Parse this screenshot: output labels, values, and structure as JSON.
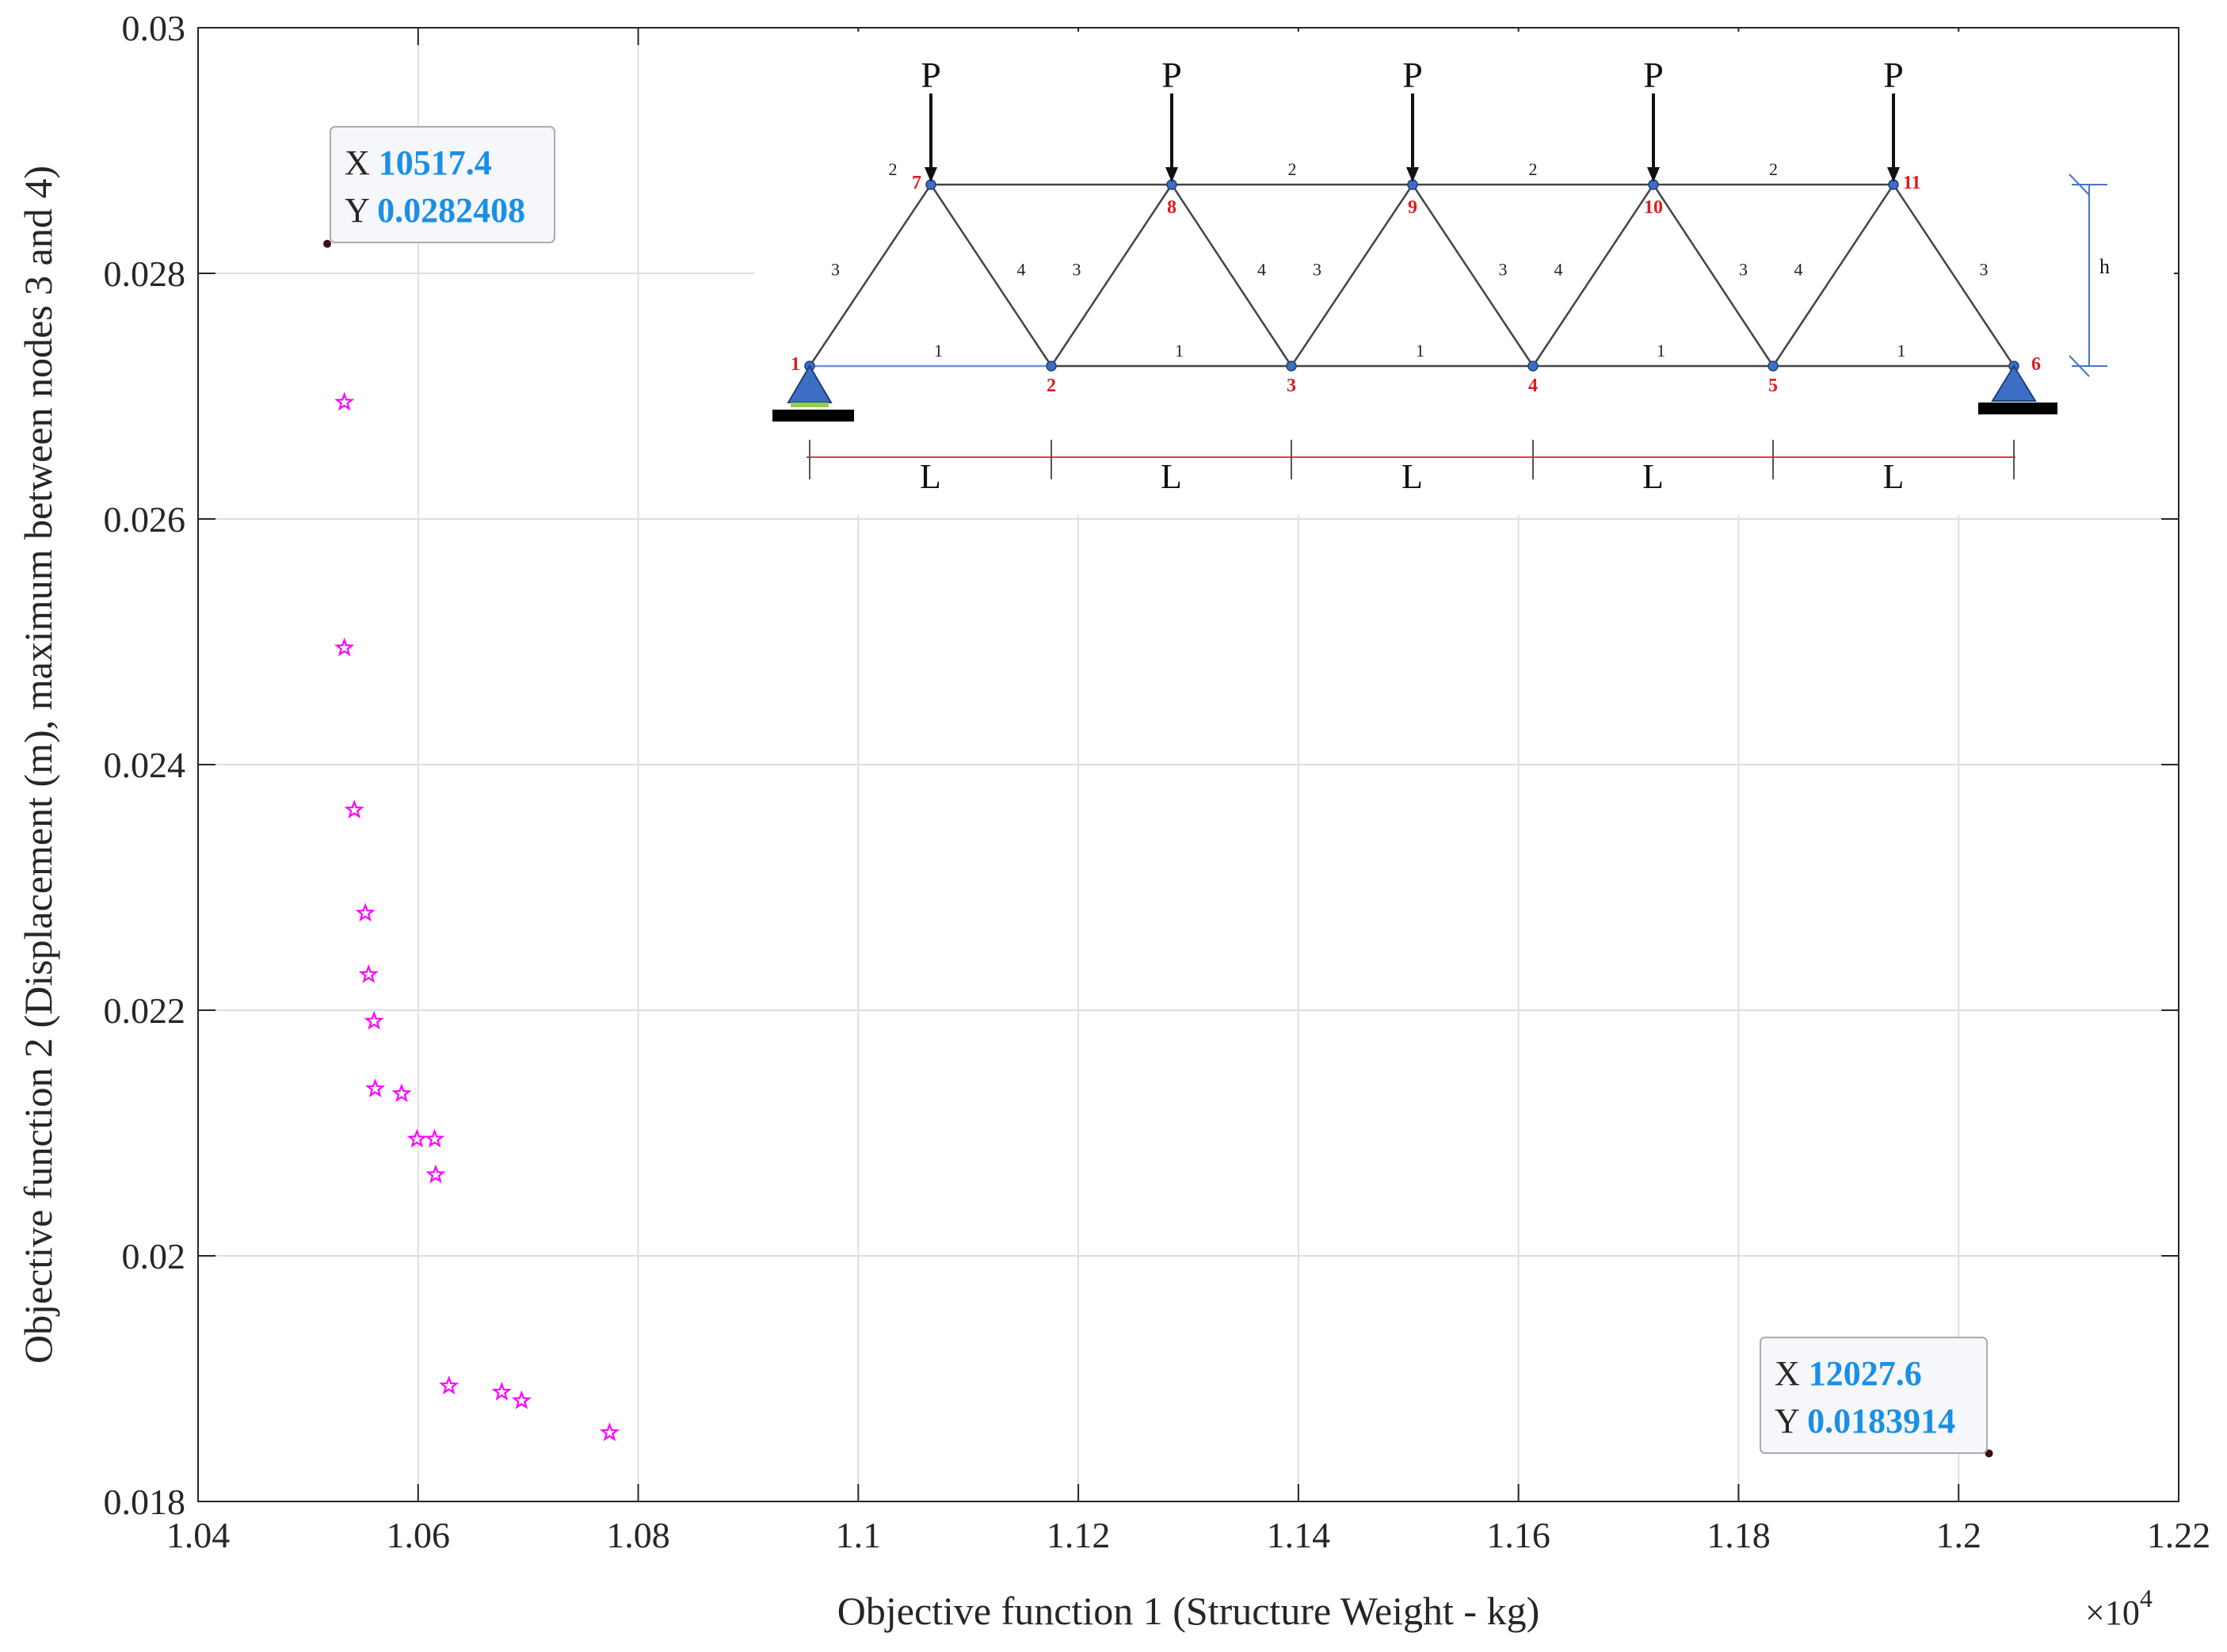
{
  "chart_data": {
    "type": "scatter",
    "xlabel": "Objective function 1 (Structure Weight - kg)",
    "ylabel": "Objective function 2 (Displacement (m), maximum between nodes 3 and 4)",
    "x_multiplier_label": "×10",
    "x_multiplier_exponent": "4",
    "xlim": [
      10400,
      12200
    ],
    "ylim": [
      0.018,
      0.03
    ],
    "grid": true,
    "x_ticks": [
      {
        "value": 10400,
        "label": "1.04"
      },
      {
        "value": 10600,
        "label": "1.06"
      },
      {
        "value": 10800,
        "label": "1.08"
      },
      {
        "value": 11000,
        "label": "1.1"
      },
      {
        "value": 11200,
        "label": "1.12"
      },
      {
        "value": 11400,
        "label": "1.14"
      },
      {
        "value": 11600,
        "label": "1.16"
      },
      {
        "value": 11800,
        "label": "1.18"
      },
      {
        "value": 12000,
        "label": "1.2"
      },
      {
        "value": 12200,
        "label": "1.22"
      }
    ],
    "y_ticks": [
      {
        "value": 0.018,
        "label": "0.018"
      },
      {
        "value": 0.02,
        "label": "0.02"
      },
      {
        "value": 0.022,
        "label": "0.022"
      },
      {
        "value": 0.024,
        "label": "0.024"
      },
      {
        "value": 0.026,
        "label": "0.026"
      },
      {
        "value": 0.028,
        "label": "0.028"
      },
      {
        "value": 0.03,
        "label": "0.03"
      }
    ],
    "series": [
      {
        "marker": "star",
        "color": "#ff00ff",
        "points": [
          {
            "x": 10533,
            "y": 0.02695
          },
          {
            "x": 10533,
            "y": 0.02495
          },
          {
            "x": 10542,
            "y": 0.02363
          },
          {
            "x": 10552,
            "y": 0.02279
          },
          {
            "x": 10555,
            "y": 0.02229
          },
          {
            "x": 10560,
            "y": 0.02191
          },
          {
            "x": 10561,
            "y": 0.02136
          },
          {
            "x": 10585,
            "y": 0.02132
          },
          {
            "x": 10599,
            "y": 0.02095
          },
          {
            "x": 10615,
            "y": 0.02095
          },
          {
            "x": 10616,
            "y": 0.02066
          },
          {
            "x": 10628,
            "y": 0.01894
          },
          {
            "x": 10676,
            "y": 0.01889
          },
          {
            "x": 10694,
            "y": 0.01882
          },
          {
            "x": 10774,
            "y": 0.01856
          }
        ]
      },
      {
        "marker": "dot",
        "color": "#3a0f0f",
        "points": [
          {
            "x": 10517.4,
            "y": 0.0282408
          },
          {
            "x": 12027.6,
            "y": 0.0183914
          }
        ]
      }
    ],
    "datatips": [
      {
        "x_label": "X",
        "x_value": "10517.4",
        "y_label": "Y",
        "y_value": "0.0282408"
      },
      {
        "x_label": "X",
        "x_value": "12027.6",
        "y_label": "Y",
        "y_value": "0.0183914"
      }
    ],
    "inset": {
      "load_label": "P",
      "height_label": "h",
      "span_label": "L",
      "node_labels": [
        "1",
        "2",
        "3",
        "4",
        "5",
        "6",
        "7",
        "8",
        "9",
        "10",
        "11"
      ],
      "bottom_chord_label": "1",
      "top_chord_label": "2",
      "diagonal_labels": [
        "3",
        "4",
        "3",
        "4",
        "3",
        "3",
        "4",
        "3",
        "4",
        "3"
      ]
    }
  }
}
